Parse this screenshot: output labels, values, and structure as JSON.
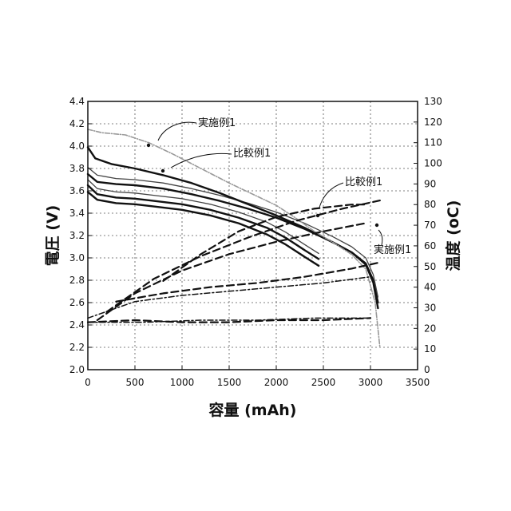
{
  "chart_data": {
    "type": "line",
    "xlabel": "容量 (mAh)",
    "ylabel_left": "電圧 (V)",
    "ylabel_right": "温度 (oC)",
    "xlim": [
      0,
      3500
    ],
    "ylim_left": [
      2.0,
      4.4
    ],
    "ylim_right": [
      0,
      130
    ],
    "x_ticks": [
      "0",
      "500",
      "1000",
      "1500",
      "2000",
      "2500",
      "3000",
      "3500"
    ],
    "y_left_ticks": [
      "2.0",
      "2.2",
      "2.4",
      "2.6",
      "2.8",
      "3.0",
      "3.2",
      "3.4",
      "3.6",
      "3.8",
      "4.0",
      "4.2",
      "4.4"
    ],
    "y_right_ticks": [
      "0",
      "10",
      "20",
      "30",
      "40",
      "50",
      "60",
      "70",
      "80",
      "90",
      "100",
      "110",
      "120",
      "130"
    ],
    "grid": true,
    "annotations": [
      {
        "text": "実施例1",
        "target": "voltage-upper"
      },
      {
        "text": "比較例1",
        "target": "voltage-upper"
      },
      {
        "text": "比較例1",
        "target": "temperature-upper"
      },
      {
        "text": "実施例1",
        "target": "temperature-lower"
      }
    ],
    "series": [
      {
        "axis": "left",
        "style": "solid-thick",
        "x": [
          0,
          100,
          300,
          500,
          700,
          1000,
          1300,
          1600,
          1900,
          2100,
          2300,
          2450
        ],
        "y": [
          3.59,
          3.52,
          3.49,
          3.48,
          3.46,
          3.43,
          3.38,
          3.31,
          3.21,
          3.12,
          3.01,
          2.93
        ]
      },
      {
        "axis": "left",
        "style": "solid-thick",
        "x": [
          0,
          100,
          300,
          500,
          700,
          1000,
          1300,
          1600,
          1900,
          2100,
          2300,
          2450
        ],
        "y": [
          3.65,
          3.57,
          3.54,
          3.53,
          3.51,
          3.48,
          3.43,
          3.36,
          3.27,
          3.18,
          3.07,
          2.99
        ]
      },
      {
        "axis": "left",
        "style": "solid-thin",
        "x": [
          0,
          100,
          300,
          500,
          700,
          1000,
          1300,
          1600,
          1900,
          2100,
          2300,
          2450
        ],
        "y": [
          3.7,
          3.62,
          3.59,
          3.58,
          3.56,
          3.53,
          3.48,
          3.41,
          3.32,
          3.23,
          3.12,
          3.04
        ]
      },
      {
        "axis": "left",
        "style": "solid-thick",
        "x": [
          0,
          100,
          300,
          500,
          800,
          1100,
          1400,
          1700,
          2000,
          2300,
          2600,
          2800,
          2950,
          3030,
          3080
        ],
        "y": [
          3.75,
          3.68,
          3.66,
          3.65,
          3.62,
          3.57,
          3.51,
          3.44,
          3.36,
          3.26,
          3.14,
          3.05,
          2.95,
          2.8,
          2.6
        ]
      },
      {
        "axis": "left",
        "style": "solid-thin",
        "x": [
          0,
          100,
          300,
          500,
          800,
          1100,
          1400,
          1700,
          2000,
          2300,
          2600,
          2800,
          2950,
          3030,
          3080
        ],
        "y": [
          3.81,
          3.74,
          3.71,
          3.7,
          3.67,
          3.62,
          3.56,
          3.49,
          3.41,
          3.31,
          3.19,
          3.1,
          3.0,
          2.85,
          2.65
        ]
      },
      {
        "axis": "left",
        "style": "solid-thick",
        "x": [
          0,
          80,
          250,
          500,
          800,
          1100,
          1400,
          1700,
          2000,
          2300,
          2600,
          2800,
          2950,
          3030,
          3080
        ],
        "y": [
          3.99,
          3.89,
          3.84,
          3.8,
          3.74,
          3.67,
          3.58,
          3.48,
          3.38,
          3.27,
          3.14,
          3.05,
          2.94,
          2.78,
          2.55
        ]
      },
      {
        "axis": "left",
        "style": "solid-gray",
        "x": [
          0,
          150,
          400,
          650,
          900,
          1200,
          1500,
          1800,
          2000,
          2200,
          2400,
          2600,
          2800,
          2950,
          3050,
          3100
        ],
        "y": [
          4.15,
          4.12,
          4.1,
          4.03,
          3.93,
          3.8,
          3.67,
          3.55,
          3.47,
          3.36,
          3.24,
          3.14,
          3.03,
          2.9,
          2.6,
          2.2
        ]
      },
      {
        "axis": "right",
        "style": "dash-thick",
        "x": [
          0,
          500,
          1000,
          1500,
          2000,
          2500,
          3000
        ],
        "y": [
          23,
          24,
          23,
          23,
          24,
          24,
          25
        ]
      },
      {
        "axis": "right",
        "style": "dashdot",
        "x": [
          0,
          600,
          1200,
          1800,
          2400,
          3000
        ],
        "y": [
          23,
          23,
          24,
          24,
          25,
          25
        ]
      },
      {
        "axis": "right",
        "style": "dashdot",
        "x": [
          0,
          500,
          1000,
          1500,
          2000,
          2500,
          3000
        ],
        "y": [
          25,
          33,
          36,
          38,
          40,
          42,
          45
        ]
      },
      {
        "axis": "right",
        "style": "dash-thick",
        "x": [
          300,
          800,
          1300,
          1800,
          2300,
          2800,
          3100
        ],
        "y": [
          33,
          37,
          40,
          42,
          45,
          49,
          52
        ]
      },
      {
        "axis": "right",
        "style": "dash-thick",
        "x": [
          100,
          500,
          1000,
          1500,
          2000,
          2500,
          2950
        ],
        "y": [
          24,
          37,
          48,
          56,
          62,
          67,
          71
        ]
      },
      {
        "axis": "right",
        "style": "dash-thick",
        "x": [
          200,
          700,
          1200,
          1700,
          2200,
          2700,
          3100
        ],
        "y": [
          28,
          44,
          55,
          64,
          72,
          78,
          82
        ]
      },
      {
        "axis": "right",
        "style": "dash-thick",
        "x": [
          800,
          1200,
          1600,
          2000,
          2400,
          2800,
          2950
        ],
        "y": [
          43,
          56,
          67,
          74,
          78,
          80,
          80
        ]
      }
    ]
  }
}
